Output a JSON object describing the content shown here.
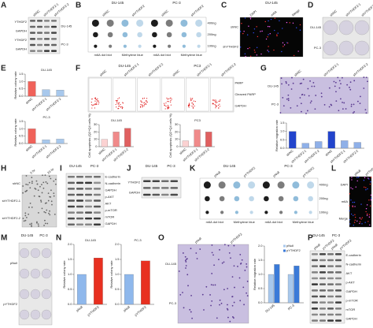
{
  "panels": [
    {
      "letter": "A",
      "columns": [
        "shNC",
        "shYTHDF2-1",
        "shYTHDF2-2"
      ],
      "rows": [
        "YTHDF2",
        "GAPDH",
        "YTHDF2",
        "GAPDH"
      ],
      "side": [
        "DU-145",
        "PC-3"
      ]
    },
    {
      "letter": "B",
      "top": [
        "DU-145",
        "PC-3"
      ],
      "columns": [
        "shNC",
        "shYTHDF2",
        "shNC",
        "shYTHDF2"
      ],
      "side": [
        "400ng",
        "200ng",
        "100ng"
      ],
      "bottom": [
        "m6A dot blot",
        "Methylene blue",
        "m6A dot blot",
        "Methylene blue"
      ]
    },
    {
      "letter": "C",
      "top": [
        "DU-145"
      ],
      "columns": [
        "DAPI",
        "m6A",
        "Merge"
      ],
      "rows": [
        "shNC",
        "shYTHDF2"
      ]
    },
    {
      "letter": "D",
      "columns": [
        "shNC",
        "shYTHDF2-1",
        "shYTHDF2-2"
      ],
      "rows": [
        "DU-145",
        "PC-3"
      ]
    },
    {
      "letter": "E",
      "charts": [
        {
          "title": "DU-145",
          "y_label": "Relative colony rate",
          "categories": [
            "shNC",
            "shYTHDF2-1",
            "shYTHDF2-2"
          ],
          "values": [
            1.0,
            0.45,
            0.42
          ],
          "colors": [
            "#f0625a",
            "#a8c8ec",
            "#a8c8ec"
          ],
          "ylim": [
            0,
            1.5
          ],
          "yticks": [
            {
              "value": 0,
              "label": "0.0"
            },
            0.5,
            {
              "value": 1,
              "label": "1.0"
            },
            1.5
          ]
        },
        {
          "title": "PC-3",
          "y_label": "Relative colony rate",
          "categories": [
            "shNC",
            "shYTHDF2-1",
            "shYTHDF2-2"
          ],
          "values": [
            1.0,
            0.25,
            0.3
          ],
          "colors": [
            "#f0625a",
            "#a8c8ec",
            "#a8c8ec"
          ],
          "ylim": [
            0,
            1.5
          ],
          "yticks": [
            {
              "value": 0,
              "label": "0.0"
            },
            0.5,
            {
              "value": 1,
              "label": "1.0"
            },
            1.5
          ]
        }
      ]
    },
    {
      "letter": "F",
      "top": [
        "DU-145",
        "PC3"
      ],
      "columns": [
        "shNC",
        "shYTHDF2-1",
        "shYTHDF2-2",
        "shNC",
        "shYTHDF2-1",
        "shYTHDF2-2"
      ],
      "side": [
        "PARP",
        "Cleaved PARP",
        "GAPDH"
      ],
      "charts": [
        {
          "title": "DU-145",
          "y_label": "Cell apoptosis (Q2+Q4 cells %)",
          "categories": [
            "shNC",
            "shYTHDF2-1",
            "shYTHDF2-2"
          ],
          "values": [
            10,
            20,
            25
          ],
          "colors": [
            "#fbd2d2",
            "#f08a8a",
            "#e06060"
          ],
          "ylim": [
            0,
            30
          ],
          "yticks": [
            0,
            10,
            20,
            30
          ]
        },
        {
          "title": "PC3",
          "y_label": "Cell apoptosis (Q2+Q4 cells %)",
          "categories": [
            "shNC",
            "shYTHDF2-1",
            "shYTHDF2-2"
          ],
          "values": [
            8,
            23,
            20
          ],
          "colors": [
            "#fbd2d2",
            "#f08a8a",
            "#e06060"
          ],
          "ylim": [
            0,
            30
          ],
          "yticks": [
            0,
            10,
            20,
            30
          ]
        }
      ]
    },
    {
      "letter": "G",
      "columns": [
        "shNC",
        "shYTHDF2-1",
        "shYTHDF2-2"
      ],
      "rows": [
        "DU-145",
        "PC-3"
      ],
      "charts": [
        {
          "y_label": "Relative migration rate",
          "categories": [
            "shNC",
            "shYTHDF2-1",
            "shYTHDF2-2",
            "shNC",
            "shYTHDF2-1",
            "shYTHDF2-2"
          ],
          "values": [
            1.0,
            0.3,
            0.4,
            1.0,
            0.45,
            0.35
          ],
          "colors": [
            "#2244cc",
            "#8fb0e8",
            "#8fb0e8",
            "#2244cc",
            "#8fb0e8",
            "#8fb0e8"
          ],
          "ylim": [
            0,
            1.5
          ],
          "yticks": [
            {
              "value": 0,
              "label": "0.0"
            },
            0.5,
            {
              "value": 1,
              "label": "1.0"
            },
            1.5
          ]
        }
      ]
    },
    {
      "letter": "H",
      "columns": [
        "0 hr",
        "24 hr"
      ],
      "rows": [
        "shNC",
        "shYTHDF2-1",
        "shYTHDF2-2"
      ]
    },
    {
      "letter": "I",
      "top": [
        "DU-145",
        "PC-3"
      ],
      "side": [
        "E-cadherin",
        "N-cadherin",
        "GAPDH",
        "p-AKT",
        "AKT",
        "p-mTOR",
        "mTOR",
        "GAPDH"
      ]
    },
    {
      "letter": "J",
      "top": [
        "DU-145",
        "PC-3"
      ],
      "rows": [
        "YTHDF2",
        "GAPDH"
      ]
    },
    {
      "letter": "K",
      "top": [
        "DU-145",
        "PC-3"
      ],
      "columns": [
        "pNull",
        "pYTHDF2",
        "pNull",
        "pYTHDF2"
      ],
      "side": [
        "400ng",
        "200ng",
        "100ng"
      ],
      "bottom": [
        "m6A dot blot",
        "Methylene blue",
        "m6A dot blot",
        "Methylene blue"
      ]
    },
    {
      "letter": "L",
      "columns": [
        "pNull",
        "pYTHDF2"
      ],
      "rows": [
        "DAPI",
        "m6A",
        "Merge"
      ]
    },
    {
      "letter": "M",
      "top": [
        "DU-145",
        "PC-3"
      ],
      "rows": [
        "pNull",
        "pYTHDF2"
      ]
    },
    {
      "letter": "N",
      "charts": [
        {
          "title": "DU-145",
          "y_label": "Relative colony rate",
          "categories": [
            "pNull",
            "pYTHDF2"
          ],
          "values": [
            1.0,
            1.55
          ],
          "colors": [
            "#8fb8ec",
            "#e83020"
          ],
          "ylim": [
            0,
            2
          ],
          "yticks": [
            {
              "value": 0,
              "label": "0.0"
            },
            0.5,
            {
              "value": 1,
              "label": "1.0"
            },
            1.5,
            {
              "value": 2,
              "label": "2.0"
            }
          ]
        },
        {
          "title": "PC-3",
          "y_label": "Relative colony rate",
          "categories": [
            "pNull",
            "pYTHDF2"
          ],
          "values": [
            1.0,
            1.45
          ],
          "colors": [
            "#8fb8ec",
            "#e83020"
          ],
          "ylim": [
            0,
            2
          ],
          "yticks": [
            {
              "value": 0,
              "label": "0.0"
            },
            0.5,
            {
              "value": 1,
              "label": "1.0"
            },
            1.5,
            {
              "value": 2,
              "label": "2.0"
            }
          ]
        }
      ]
    },
    {
      "letter": "O",
      "columns": [
        "pNull",
        "pYTHDF2"
      ],
      "rows": [
        "DU-145",
        "PC-3"
      ],
      "charts": [
        {
          "y_label": "Relative migration rate",
          "categories": [
            "DU-145",
            "PC-3"
          ],
          "series": [
            {
              "name": "pNull",
              "color": "#a8c8ec",
              "values": [
                1.0,
                1.0
              ]
            },
            {
              "name": "pYTHDF2",
              "color": "#3a7ad8",
              "values": [
                1.35,
                1.3
              ]
            }
          ],
          "legend": true,
          "ylim": [
            0,
            2
          ],
          "yticks": [
            {
              "value": 0,
              "label": "0.0"
            },
            0.5,
            {
              "value": 1,
              "label": "1.0"
            },
            1.5,
            {
              "value": 2,
              "label": "2.0"
            }
          ]
        }
      ]
    },
    {
      "letter": "P",
      "top": [
        "DU-145",
        "PC-3"
      ],
      "columns": [
        "pNull",
        "pYTHDF2",
        "pNull",
        "pYTHDF2"
      ],
      "side": [
        "E-cadherin",
        "N-cadherin",
        "AKT",
        "p-AKT",
        "GAPDH",
        "p-mTOR",
        "mTOR",
        "GAPDH"
      ]
    }
  ]
}
